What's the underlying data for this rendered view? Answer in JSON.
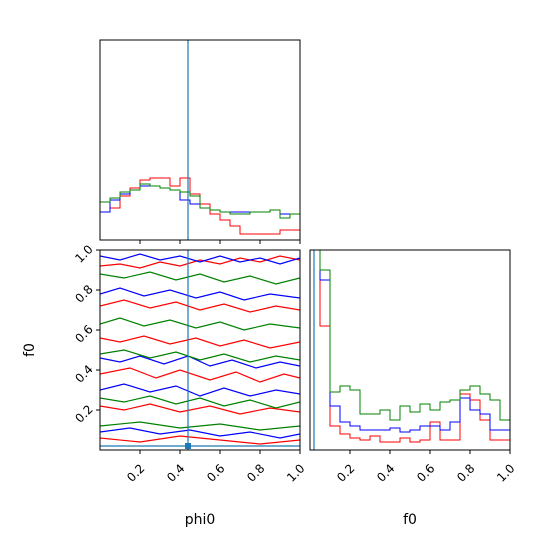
{
  "colors": {
    "run_a": "#ff0000",
    "run_b": "#0000ff",
    "run_c": "#008000",
    "truth": "#1f77b4"
  },
  "axes": {
    "phi0_label": "phi0",
    "f0_label": "f0"
  },
  "chart_data": [
    {
      "type": "histogram",
      "panel": "phi0 marginal (top-left)",
      "x_range": [
        0,
        1
      ],
      "x_ticks": [
        "0.2",
        "0.4",
        "0.6",
        "0.8",
        "1.0"
      ],
      "tick_labels_visible": false,
      "bins": 20,
      "truth": 0.44,
      "series": [
        {
          "color": "#ff0000",
          "values": [
            0.14,
            0.16,
            0.22,
            0.26,
            0.3,
            0.31,
            0.31,
            0.27,
            0.31,
            0.23,
            0.18,
            0.13,
            0.1,
            0.07,
            0.03,
            0.03,
            0.03,
            0.03,
            0.05,
            0.05
          ]
        },
        {
          "color": "#0000ff",
          "values": [
            0.14,
            0.2,
            0.23,
            0.25,
            0.27,
            0.27,
            0.26,
            0.25,
            0.2,
            0.18,
            0.16,
            0.15,
            0.14,
            0.14,
            0.14,
            0.14,
            0.14,
            0.15,
            0.13,
            0.13
          ]
        },
        {
          "color": "#008000",
          "values": [
            0.19,
            0.21,
            0.24,
            0.25,
            0.28,
            0.27,
            0.26,
            0.25,
            0.24,
            0.22,
            0.16,
            0.15,
            0.14,
            0.13,
            0.13,
            0.14,
            0.14,
            0.15,
            0.11,
            0.13
          ]
        }
      ]
    },
    {
      "type": "contour",
      "panel": "f0 vs phi0 (bottom-left)",
      "xlabel": "phi0",
      "ylabel": "f0",
      "xlim": [
        0,
        1
      ],
      "ylim": [
        0,
        1
      ],
      "x_ticks": [
        "0.2",
        "0.4",
        "0.6",
        "0.8",
        "1.0"
      ],
      "y_ticks": [
        "0.2",
        "0.4",
        "0.6",
        "0.8",
        "1.0"
      ],
      "truth_x": 0.44,
      "truth_y": 0.02,
      "series": [
        {
          "color": "#ff0000",
          "level_lines": [
            [
              [
                0,
                0.92
              ],
              [
                0.1,
                0.93
              ],
              [
                0.2,
                0.91
              ],
              [
                0.3,
                0.94
              ],
              [
                0.4,
                0.92
              ],
              [
                0.5,
                0.95
              ],
              [
                0.6,
                0.93
              ],
              [
                0.7,
                0.96
              ],
              [
                0.8,
                0.94
              ],
              [
                0.9,
                0.97
              ],
              [
                1,
                0.95
              ]
            ],
            [
              [
                0,
                0.72
              ],
              [
                0.12,
                0.75
              ],
              [
                0.25,
                0.71
              ],
              [
                0.38,
                0.74
              ],
              [
                0.5,
                0.7
              ],
              [
                0.62,
                0.73
              ],
              [
                0.75,
                0.69
              ],
              [
                0.88,
                0.72
              ],
              [
                1,
                0.7
              ]
            ],
            [
              [
                0,
                0.56
              ],
              [
                0.1,
                0.54
              ],
              [
                0.22,
                0.57
              ],
              [
                0.35,
                0.53
              ],
              [
                0.48,
                0.56
              ],
              [
                0.6,
                0.52
              ],
              [
                0.72,
                0.55
              ],
              [
                0.85,
                0.51
              ],
              [
                1,
                0.54
              ]
            ],
            [
              [
                0,
                0.38
              ],
              [
                0.15,
                0.41
              ],
              [
                0.28,
                0.36
              ],
              [
                0.4,
                0.4
              ],
              [
                0.55,
                0.35
              ],
              [
                0.68,
                0.39
              ],
              [
                0.8,
                0.34
              ],
              [
                0.92,
                0.38
              ],
              [
                1,
                0.36
              ]
            ],
            [
              [
                0,
                0.22
              ],
              [
                0.12,
                0.2
              ],
              [
                0.25,
                0.23
              ],
              [
                0.4,
                0.19
              ],
              [
                0.55,
                0.22
              ],
              [
                0.7,
                0.18
              ],
              [
                0.85,
                0.21
              ],
              [
                1,
                0.19
              ]
            ],
            [
              [
                0,
                0.06
              ],
              [
                0.2,
                0.04
              ],
              [
                0.4,
                0.07
              ],
              [
                0.6,
                0.05
              ],
              [
                0.8,
                0.03
              ],
              [
                1,
                0.05
              ]
            ]
          ]
        },
        {
          "color": "#0000ff",
          "level_lines": [
            [
              [
                0,
                0.97
              ],
              [
                0.1,
                0.95
              ],
              [
                0.2,
                0.98
              ],
              [
                0.3,
                0.95
              ],
              [
                0.4,
                0.97
              ],
              [
                0.5,
                0.94
              ],
              [
                0.6,
                0.97
              ],
              [
                0.7,
                0.94
              ],
              [
                0.8,
                0.96
              ],
              [
                0.9,
                0.93
              ],
              [
                1,
                0.96
              ]
            ],
            [
              [
                0,
                0.78
              ],
              [
                0.1,
                0.81
              ],
              [
                0.22,
                0.77
              ],
              [
                0.35,
                0.8
              ],
              [
                0.48,
                0.76
              ],
              [
                0.6,
                0.79
              ],
              [
                0.72,
                0.75
              ],
              [
                0.85,
                0.78
              ],
              [
                1,
                0.76
              ]
            ],
            [
              [
                0,
                0.46
              ],
              [
                0.1,
                0.44
              ],
              [
                0.2,
                0.47
              ],
              [
                0.32,
                0.43
              ],
              [
                0.44,
                0.47
              ],
              [
                0.55,
                0.42
              ],
              [
                0.66,
                0.45
              ],
              [
                0.78,
                0.41
              ],
              [
                0.9,
                0.44
              ],
              [
                1,
                0.42
              ]
            ],
            [
              [
                0,
                0.3
              ],
              [
                0.12,
                0.33
              ],
              [
                0.25,
                0.29
              ],
              [
                0.38,
                0.32
              ],
              [
                0.5,
                0.27
              ],
              [
                0.62,
                0.31
              ],
              [
                0.75,
                0.27
              ],
              [
                0.88,
                0.3
              ],
              [
                1,
                0.28
              ]
            ],
            [
              [
                0,
                0.09
              ],
              [
                0.15,
                0.11
              ],
              [
                0.3,
                0.08
              ],
              [
                0.45,
                0.1
              ],
              [
                0.6,
                0.07
              ],
              [
                0.75,
                0.09
              ],
              [
                0.9,
                0.06
              ],
              [
                1,
                0.08
              ]
            ]
          ]
        },
        {
          "color": "#008000",
          "level_lines": [
            [
              [
                0,
                0.88
              ],
              [
                0.12,
                0.86
              ],
              [
                0.25,
                0.89
              ],
              [
                0.38,
                0.85
              ],
              [
                0.5,
                0.88
              ],
              [
                0.62,
                0.84
              ],
              [
                0.75,
                0.87
              ],
              [
                0.88,
                0.83
              ],
              [
                1,
                0.86
              ]
            ],
            [
              [
                0,
                0.63
              ],
              [
                0.1,
                0.66
              ],
              [
                0.22,
                0.62
              ],
              [
                0.35,
                0.65
              ],
              [
                0.48,
                0.61
              ],
              [
                0.6,
                0.64
              ],
              [
                0.72,
                0.6
              ],
              [
                0.85,
                0.63
              ],
              [
                1,
                0.61
              ]
            ],
            [
              [
                0,
                0.48
              ],
              [
                0.12,
                0.5
              ],
              [
                0.25,
                0.46
              ],
              [
                0.38,
                0.49
              ],
              [
                0.5,
                0.45
              ],
              [
                0.62,
                0.48
              ],
              [
                0.75,
                0.44
              ],
              [
                0.88,
                0.47
              ],
              [
                1,
                0.45
              ]
            ],
            [
              [
                0,
                0.26
              ],
              [
                0.12,
                0.24
              ],
              [
                0.25,
                0.27
              ],
              [
                0.38,
                0.23
              ],
              [
                0.5,
                0.26
              ],
              [
                0.62,
                0.22
              ],
              [
                0.75,
                0.25
              ],
              [
                0.88,
                0.21
              ],
              [
                1,
                0.24
              ]
            ],
            [
              [
                0,
                0.12
              ],
              [
                0.2,
                0.14
              ],
              [
                0.4,
                0.11
              ],
              [
                0.6,
                0.13
              ],
              [
                0.8,
                0.1
              ],
              [
                1,
                0.12
              ]
            ]
          ]
        }
      ]
    },
    {
      "type": "histogram",
      "panel": "f0 marginal (bottom-right)",
      "xlabel": "f0",
      "x_range": [
        0,
        1
      ],
      "x_ticks": [
        "0.2",
        "0.4",
        "0.6",
        "0.8",
        "1.0"
      ],
      "bins": 20,
      "truth": 0.02,
      "series": [
        {
          "color": "#ff0000",
          "values": [
            1.0,
            0.62,
            0.12,
            0.08,
            0.06,
            0.05,
            0.07,
            0.04,
            0.04,
            0.06,
            0.04,
            0.05,
            0.14,
            0.05,
            0.05,
            0.28,
            0.25,
            0.15,
            0.05,
            0.05
          ]
        },
        {
          "color": "#0000ff",
          "values": [
            1.0,
            0.85,
            0.22,
            0.14,
            0.12,
            0.1,
            0.1,
            0.1,
            0.11,
            0.09,
            0.1,
            0.12,
            0.12,
            0.1,
            0.14,
            0.26,
            0.2,
            0.18,
            0.1,
            0.1
          ]
        },
        {
          "color": "#008000",
          "values": [
            1.0,
            0.9,
            0.29,
            0.32,
            0.3,
            0.18,
            0.18,
            0.2,
            0.15,
            0.22,
            0.19,
            0.23,
            0.2,
            0.24,
            0.25,
            0.3,
            0.32,
            0.28,
            0.25,
            0.15
          ]
        }
      ]
    }
  ]
}
